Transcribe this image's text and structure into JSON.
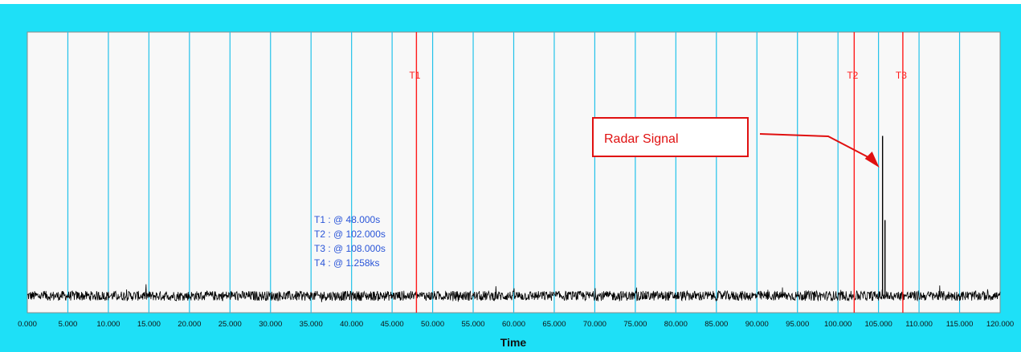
{
  "chart_data": {
    "type": "line",
    "xlabel": "Time",
    "xlim": [
      0,
      120
    ],
    "x_ticks": [
      "0.000",
      "5.000",
      "10.000",
      "15.000",
      "20.000",
      "25.000",
      "30.000",
      "35.000",
      "40.000",
      "45.000",
      "50.000",
      "55.000",
      "60.000",
      "65.000",
      "70.000",
      "75.000",
      "80.000",
      "85.000",
      "90.000",
      "95.000",
      "100.000",
      "105.000",
      "110.000",
      "115.000",
      "120.000"
    ],
    "grid": true,
    "cursors": [
      {
        "name": "T1",
        "x": 48
      },
      {
        "name": "T2",
        "x": 102
      },
      {
        "name": "T3",
        "x": 108
      }
    ],
    "readouts": [
      "T1 : @ 48.000s",
      "T2 : @ 102.000s",
      "T3 : @ 108.000s",
      "T4 : @ 1.258ks"
    ],
    "annotation": {
      "text": "Radar Signal",
      "target_x": 105.3
    },
    "spikes": [
      {
        "x": 105.5,
        "level": 0.63
      },
      {
        "x": 105.8,
        "level": 0.33
      }
    ],
    "noise_level": 0.06,
    "colors": {
      "frame": "#1ee0f7",
      "plot_bg": "#f8f8f8",
      "grid": "#22c2ea",
      "cursor": "#ff1a1a",
      "signal": "#000000",
      "readout": "#2a55d8",
      "annotation": "#e01010"
    }
  }
}
